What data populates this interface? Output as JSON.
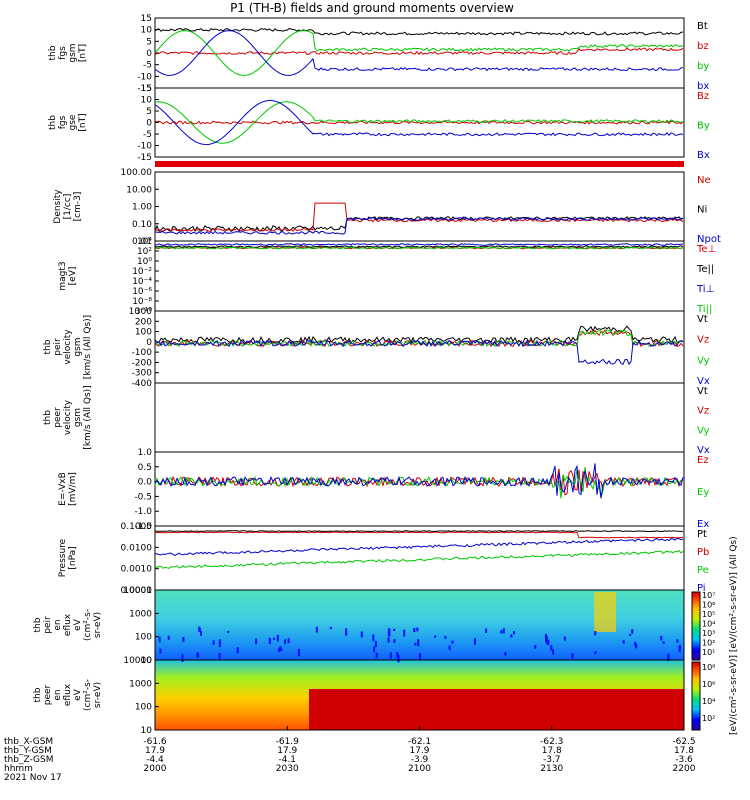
{
  "title": "P1 (TH-B) fields and ground moments overview",
  "colors": {
    "black": "#000000",
    "red": "#d00000",
    "green": "#00c800",
    "blue": "#0000d0"
  },
  "panels": [
    {
      "id": "fgs-gsm",
      "ylabel": [
        "thb",
        "fgs",
        "gsm",
        "[nT]"
      ],
      "ylim": [
        -15,
        15
      ],
      "ticks": [
        "15",
        "10",
        "5",
        "0",
        "-5",
        "-10",
        "-15"
      ],
      "legend": [
        {
          "text": "Bt",
          "color": "black"
        },
        {
          "text": "bz",
          "color": "red"
        },
        {
          "text": "by",
          "color": "green"
        },
        {
          "text": "bx",
          "color": "blue"
        }
      ]
    },
    {
      "id": "fgs-gse",
      "ylabel": [
        "thb",
        "fgs",
        "gse",
        "[nT]"
      ],
      "ylim": [
        -15,
        15
      ],
      "ticks": [
        "15",
        "10",
        "5",
        "0",
        "-5",
        "-10",
        "-15"
      ],
      "legend": [
        {
          "text": "Bz",
          "color": "red"
        },
        {
          "text": "By",
          "color": "green"
        },
        {
          "text": "Bx",
          "color": "blue"
        }
      ]
    },
    {
      "id": "density",
      "ylabel": [
        "Density",
        "[1/cc]",
        "[cm-3]"
      ],
      "scale": "log",
      "ticks": [
        "100.00",
        "10.00",
        "1.00",
        "0.10",
        "0.01"
      ],
      "legend": [
        {
          "text": "Ne",
          "color": "red"
        },
        {
          "text": "Ni",
          "color": "black"
        },
        {
          "text": "Npot",
          "color": "blue"
        }
      ]
    },
    {
      "id": "temperature",
      "ylabel": [
        "magt3",
        "[eV]"
      ],
      "scale": "log",
      "ticks": [
        "10⁴",
        "10²",
        "10⁰",
        "10⁻²",
        "10⁻⁴",
        "10⁻⁶",
        "10⁻⁸",
        "10⁻¹⁰"
      ],
      "legend": [
        {
          "text": "Te⊥",
          "color": "red"
        },
        {
          "text": "Te||",
          "color": "black"
        },
        {
          "text": "Ti⊥",
          "color": "blue"
        },
        {
          "text": "Ti||",
          "color": "green"
        }
      ]
    },
    {
      "id": "peir-velocity",
      "ylabel": [
        "thb",
        "peir",
        "velocity",
        "gsm",
        "[km/s (All Qs)]"
      ],
      "ylim": [
        -400,
        400
      ],
      "ticks": [
        "300",
        "200",
        "100",
        "0",
        "-100",
        "-200",
        "-300",
        "-400"
      ],
      "legend": [
        {
          "text": "Vt",
          "color": "black"
        },
        {
          "text": "Vz",
          "color": "red"
        },
        {
          "text": "Vy",
          "color": "green"
        },
        {
          "text": "Vx",
          "color": "blue"
        }
      ]
    },
    {
      "id": "peer-velocity",
      "ylabel": [
        "thb",
        "peer",
        "velocity",
        "gsm",
        "[km/s (All Qs)]"
      ],
      "ticks": [],
      "legend": [
        {
          "text": "Vt",
          "color": "black"
        },
        {
          "text": "Vz",
          "color": "red"
        },
        {
          "text": "Vy",
          "color": "green"
        },
        {
          "text": "Vx",
          "color": "blue"
        }
      ]
    },
    {
      "id": "efield",
      "ylabel": [
        "E=-VxB",
        "[mV/m]"
      ],
      "ylim": [
        -1.5,
        1.0
      ],
      "ticks": [
        "1.0",
        "0.5",
        "0.0",
        "-0.5",
        "-1.0",
        "-1.5"
      ],
      "legend": [
        {
          "text": "Ez",
          "color": "red"
        },
        {
          "text": "Ey",
          "color": "green"
        },
        {
          "text": "Ex",
          "color": "blue"
        }
      ]
    },
    {
      "id": "pressure",
      "ylabel": [
        "Pressure",
        "[nPa]"
      ],
      "scale": "log",
      "ticks": [
        "0.1000",
        "0.0100",
        "0.0010",
        "0.0001"
      ],
      "legend": [
        {
          "text": "Pt",
          "color": "black"
        },
        {
          "text": "Pb",
          "color": "red"
        },
        {
          "text": "Pe",
          "color": "green"
        },
        {
          "text": "Pi",
          "color": "blue"
        }
      ]
    },
    {
      "id": "peir-eflux",
      "ylabel": [
        "thb",
        "peir",
        "en",
        "eflux",
        "eV",
        "(cm²-s-",
        "sr-eV)"
      ],
      "scale": "log",
      "ticks": [
        "10000",
        "1000",
        "100",
        "10"
      ]
    },
    {
      "id": "peer-eflux",
      "ylabel": [
        "thb",
        "peer",
        "en",
        "eflux",
        "eV",
        "(cm²-s-",
        "sr-eV)"
      ],
      "scale": "log",
      "ticks": [
        "10000",
        "1000",
        "100",
        "10"
      ]
    }
  ],
  "colorbars": {
    "ion": {
      "ticks": [
        "10⁷",
        "10⁶",
        "10⁵",
        "10⁴",
        "10³",
        "10²",
        "10¹"
      ]
    },
    "electron": {
      "ticks": [
        "10⁸",
        "10⁶",
        "10⁴",
        "10²"
      ]
    },
    "label": "[eV/(cm²-s-sr-eV)] [eV/(cm²-s-sr-eV)] (All Qs)"
  },
  "xaxis": {
    "row_labels": [
      "thb_X-GSM",
      "thb_Y-GSM",
      "thb_Z-GSM",
      "hhmm",
      "2021 Nov 17"
    ],
    "ticks": [
      {
        "x": "-61.6",
        "y": "17.9",
        "z": "-4.4",
        "t": "2000"
      },
      {
        "x": "-61.9",
        "y": "17.9",
        "z": "-4.1",
        "t": "2030"
      },
      {
        "x": "-62.1",
        "y": "17.9",
        "z": "-3.9",
        "t": "2100"
      },
      {
        "x": "-62.3",
        "y": "17.8",
        "z": "-3.7",
        "t": "2130"
      },
      {
        "x": "-62.5",
        "y": "17.8",
        "z": "-3.6",
        "t": "2200"
      }
    ]
  },
  "chart_data": {
    "type": "line",
    "title": "P1 (TH-B) fields and ground moments overview",
    "x": [
      "2000",
      "2030",
      "2100",
      "2130",
      "2200"
    ],
    "xlabel": "hhmm",
    "series": [
      {
        "name": "Bt",
        "panel": "fgs-gsm",
        "values": [
          10,
          9,
          8.5,
          8,
          8
        ]
      },
      {
        "name": "bz",
        "panel": "fgs-gsm",
        "values": [
          0,
          0,
          0,
          0,
          1
        ]
      },
      {
        "name": "by",
        "panel": "fgs-gsm",
        "values": [
          -5,
          8,
          1,
          1,
          3
        ]
      },
      {
        "name": "bx",
        "panel": "fgs-gsm",
        "values": [
          8,
          -6,
          -7,
          -7,
          -6
        ]
      },
      {
        "name": "Ni",
        "panel": "density",
        "values": [
          0.05,
          0.05,
          0.3,
          0.2,
          0.15
        ]
      },
      {
        "name": "Ne",
        "panel": "density",
        "values": [
          0.04,
          0.05,
          0.3,
          0.2,
          0.15
        ]
      },
      {
        "name": "Vt",
        "panel": "peir-velocity",
        "values": [
          50,
          40,
          10,
          20,
          40
        ]
      },
      {
        "name": "Pt",
        "panel": "pressure",
        "values": [
          0.04,
          0.04,
          0.035,
          0.04,
          0.04
        ]
      },
      {
        "name": "Pb",
        "panel": "pressure",
        "values": [
          0.035,
          0.04,
          0.03,
          0.03,
          0.02
        ]
      },
      {
        "name": "Pi",
        "panel": "pressure",
        "values": [
          0.003,
          0.006,
          0.01,
          0.01,
          0.015
        ]
      },
      {
        "name": "Pe",
        "panel": "pressure",
        "values": [
          0.0002,
          0.0005,
          0.0008,
          0.001,
          0.001
        ]
      }
    ]
  }
}
